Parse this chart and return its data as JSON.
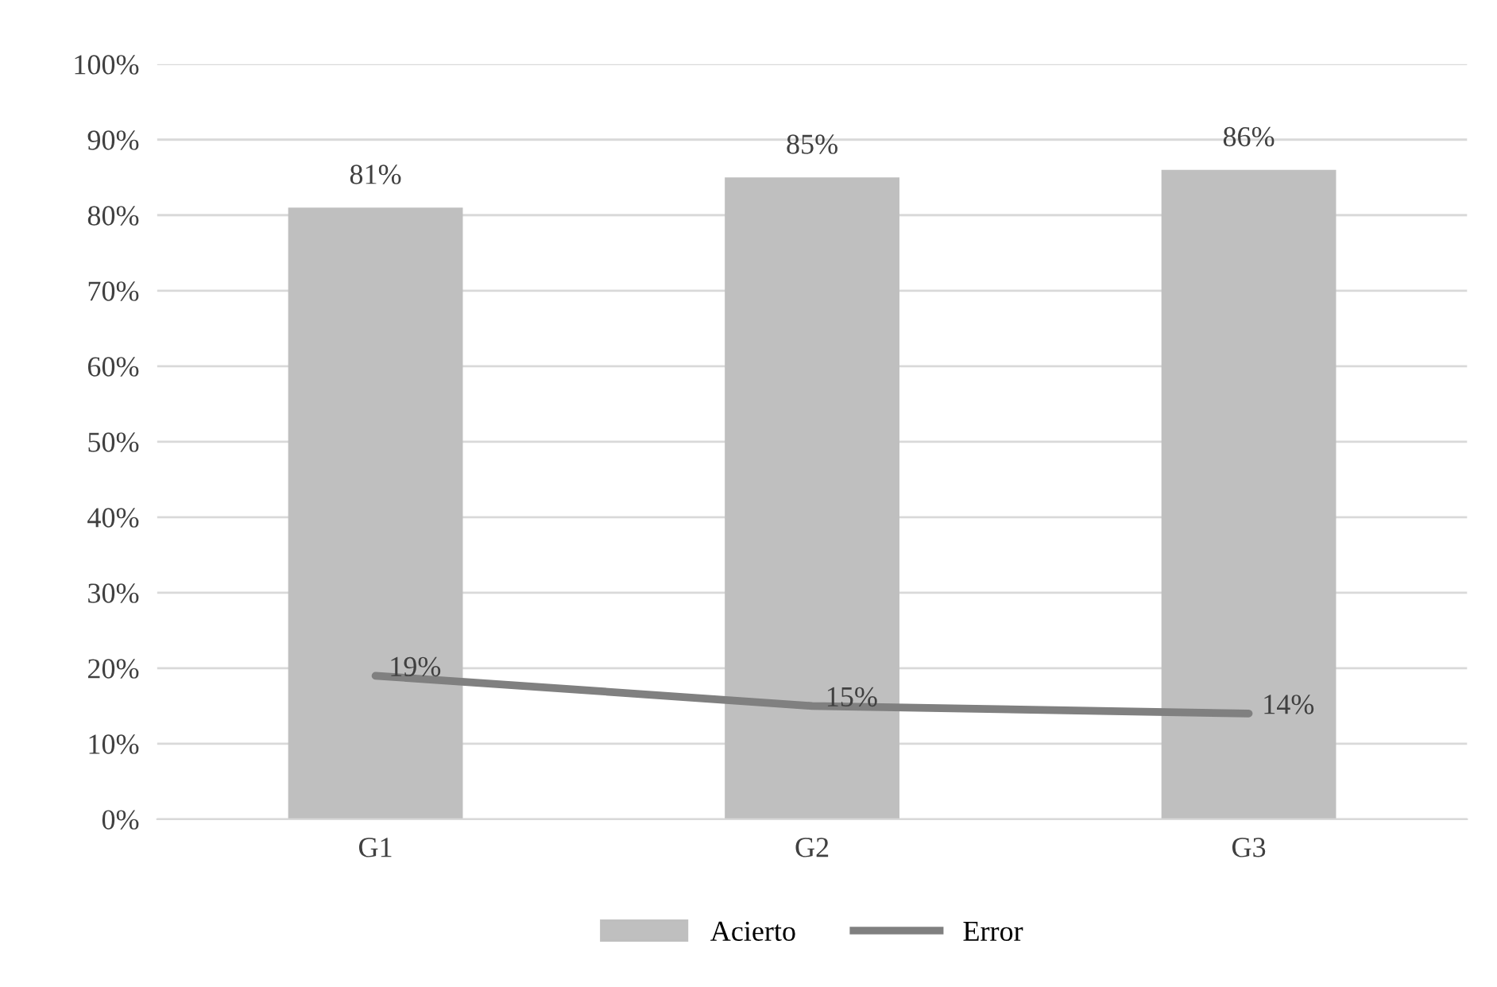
{
  "chart_data": {
    "type": "bar",
    "categories": [
      "G1",
      "G2",
      "G3"
    ],
    "series": [
      {
        "name": "Acierto",
        "color": "#bfbfbf",
        "values": [
          81,
          85,
          86
        ],
        "value_labels": [
          "81%",
          "85%",
          "86%"
        ]
      },
      {
        "name": "Error",
        "type": "line",
        "color": "#808080",
        "values": [
          19,
          15,
          14
        ],
        "value_labels": [
          "19%",
          "15%",
          "14%"
        ]
      }
    ],
    "ylim": [
      0,
      100
    ],
    "yticks": [
      {
        "value": 0,
        "label": "0%"
      },
      {
        "value": 10,
        "label": "10%"
      },
      {
        "value": 20,
        "label": "20%"
      },
      {
        "value": 30,
        "label": "30%"
      },
      {
        "value": 40,
        "label": "40%"
      },
      {
        "value": 50,
        "label": "50%"
      },
      {
        "value": 60,
        "label": "60%"
      },
      {
        "value": 70,
        "label": "70%"
      },
      {
        "value": 80,
        "label": "80%"
      },
      {
        "value": 90,
        "label": "90%"
      },
      {
        "value": 100,
        "label": "100%"
      }
    ],
    "grid": "y",
    "legend": "bottom",
    "marker": "none",
    "line_style": "solid"
  }
}
